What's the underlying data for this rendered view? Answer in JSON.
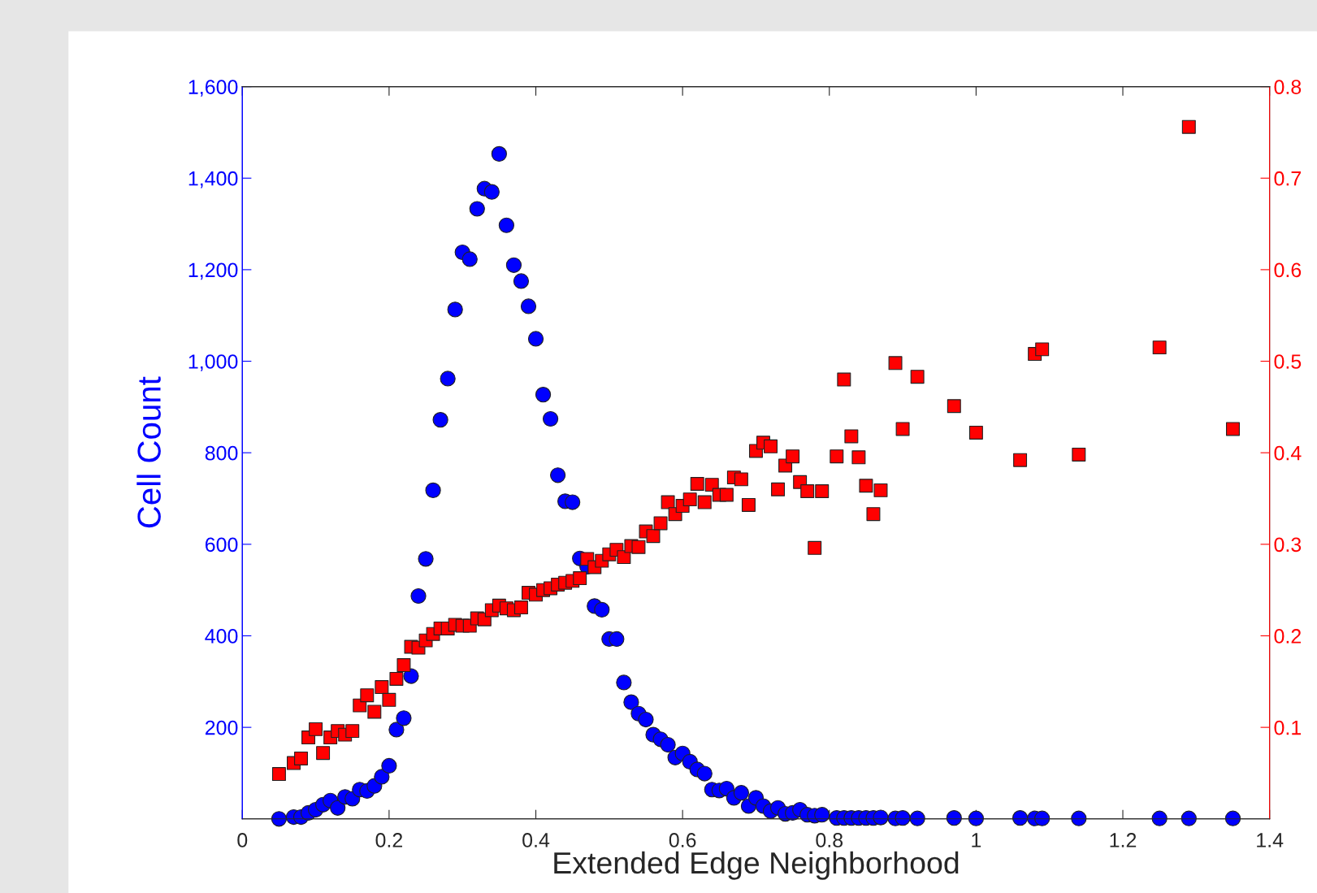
{
  "chart_data": {
    "type": "scatter",
    "xlabel": "Extended Edge Neighborhood",
    "ylabel": "Cell Count",
    "x": [
      0.05,
      0.07,
      0.08,
      0.09,
      0.1,
      0.11,
      0.12,
      0.13,
      0.14,
      0.15,
      0.16,
      0.17,
      0.18,
      0.19,
      0.2,
      0.21,
      0.22,
      0.23,
      0.24,
      0.25,
      0.26,
      0.27,
      0.28,
      0.29,
      0.3,
      0.31,
      0.32,
      0.33,
      0.34,
      0.35,
      0.36,
      0.37,
      0.38,
      0.39,
      0.4,
      0.41,
      0.42,
      0.43,
      0.44,
      0.45,
      0.46,
      0.47,
      0.48,
      0.49,
      0.5,
      0.51,
      0.52,
      0.53,
      0.54,
      0.55,
      0.56,
      0.57,
      0.58,
      0.59,
      0.6,
      0.61,
      0.62,
      0.63,
      0.64,
      0.65,
      0.66,
      0.67,
      0.68,
      0.69,
      0.7,
      0.71,
      0.72,
      0.73,
      0.74,
      0.75,
      0.76,
      0.77,
      0.78,
      0.79,
      0.81,
      0.82,
      0.83,
      0.84,
      0.85,
      0.86,
      0.87,
      0.89,
      0.9,
      0.92,
      0.97,
      1.0,
      1.06,
      1.08,
      1.09,
      1.14,
      1.25,
      1.29,
      1.35
    ],
    "series": [
      {
        "color": "#0000ff",
        "marker": "circle",
        "values": [
          0,
          4,
          4,
          13,
          20,
          31,
          40,
          24,
          48,
          44,
          64,
          61,
          72,
          92,
          116,
          195,
          220,
          312,
          487,
          568,
          718,
          872,
          962,
          1113,
          1238,
          1223,
          1333,
          1377,
          1370,
          1453,
          1297,
          1210,
          1175,
          1120,
          1049,
          927,
          874,
          751,
          694,
          692,
          569,
          551,
          465,
          457,
          393,
          393,
          298,
          255,
          230,
          217,
          184,
          174,
          162,
          134,
          143,
          125,
          108,
          99,
          64,
          62,
          66,
          46,
          57,
          28,
          46,
          28,
          17,
          24,
          11,
          13,
          20,
          9,
          7,
          9,
          2,
          2,
          2,
          2,
          2,
          2,
          3,
          1,
          2,
          1,
          2,
          1,
          2,
          1,
          1,
          1,
          1,
          1,
          1
        ]
      },
      {
        "color": "#ff0000",
        "marker": "square",
        "axis": "y2",
        "values": [
          0.049,
          0.061,
          0.066,
          0.089,
          0.098,
          0.072,
          0.089,
          0.096,
          0.092,
          0.096,
          0.124,
          0.135,
          0.117,
          0.144,
          0.13,
          0.153,
          0.168,
          0.188,
          0.187,
          0.195,
          0.202,
          0.208,
          0.208,
          0.212,
          0.211,
          0.211,
          0.219,
          0.218,
          0.228,
          0.233,
          0.23,
          0.228,
          0.231,
          0.247,
          0.245,
          0.25,
          0.252,
          0.256,
          0.258,
          0.26,
          0.263,
          0.284,
          0.275,
          0.282,
          0.289,
          0.294,
          0.286,
          0.298,
          0.297,
          0.314,
          0.309,
          0.323,
          0.346,
          0.333,
          0.342,
          0.349,
          0.366,
          0.346,
          0.365,
          0.354,
          0.354,
          0.373,
          0.371,
          0.343,
          0.402,
          0.411,
          0.407,
          0.36,
          0.386,
          0.396,
          0.368,
          0.358,
          0.296,
          0.358,
          0.396,
          0.48,
          0.418,
          0.395,
          0.364,
          0.333,
          0.359,
          0.498,
          0.426,
          0.483,
          0.451,
          0.422,
          0.392,
          0.508,
          0.513,
          0.398,
          0.515,
          0.756,
          0.426
        ]
      }
    ],
    "xlim": [
      0,
      1.4
    ],
    "xticks": [
      0,
      0.2,
      0.4,
      0.6,
      0.8,
      1,
      1.2,
      1.4
    ],
    "ylim": [
      0,
      1600
    ],
    "yticks": [
      {
        "value": 200,
        "label": "200"
      },
      {
        "value": 400,
        "label": "400"
      },
      {
        "value": 600,
        "label": "600"
      },
      {
        "value": 800,
        "label": "800"
      },
      {
        "value": 1000,
        "label": "1,000"
      },
      {
        "value": 1200,
        "label": "1,200"
      },
      {
        "value": 1400,
        "label": "1,400"
      },
      {
        "value": 1600,
        "label": "1,600"
      }
    ],
    "y2lim": [
      0,
      0.8
    ],
    "y2ticks": [
      0.1,
      0.2,
      0.3,
      0.4,
      0.5,
      0.6,
      0.7,
      0.8
    ],
    "grid": false,
    "legend": false
  }
}
